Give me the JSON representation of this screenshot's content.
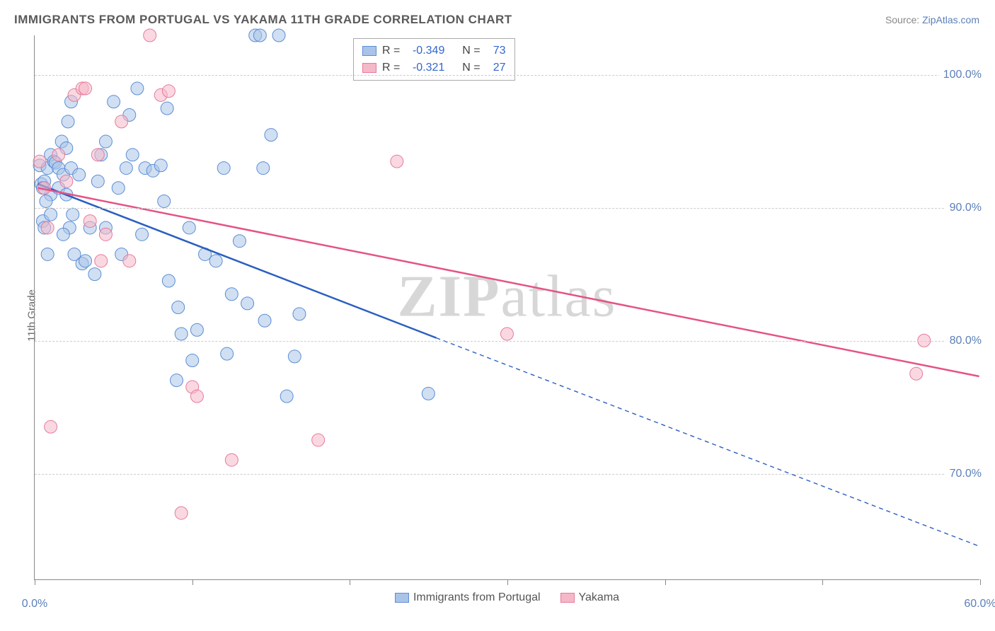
{
  "title": "IMMIGRANTS FROM PORTUGAL VS YAKAMA 11TH GRADE CORRELATION CHART",
  "source_label": "Source:",
  "source_name": "ZipAtlas.com",
  "ylabel": "11th Grade",
  "watermark": {
    "part1": "ZIP",
    "part2": "atlas"
  },
  "chart": {
    "type": "scatter",
    "x_min": 0,
    "x_max": 60,
    "y_min": 62,
    "y_max": 103,
    "y_ticks": [
      70,
      80,
      90,
      100
    ],
    "y_tick_labels": [
      "70.0%",
      "80.0%",
      "90.0%",
      "100.0%"
    ],
    "x_ticks": [
      0,
      10,
      20,
      30,
      40,
      50,
      60
    ],
    "x_tick_labels": [
      "0.0%",
      null,
      null,
      null,
      null,
      null,
      "60.0%"
    ],
    "grid_color": "#cccccc",
    "marker_radius": 9,
    "marker_opacity": 0.55,
    "series": [
      {
        "name": "Immigrants from Portugal",
        "color_fill": "#a9c4e8",
        "color_stroke": "#5b8dd6",
        "line_color": "#2b5fc1",
        "line_width": 2.5,
        "R": "-0.349",
        "N": "73",
        "trend": {
          "x1": 0.2,
          "y1": 91.8,
          "x2": 25.5,
          "y2": 80.2,
          "extend_x2": 60,
          "extend_y2": 64.5,
          "extend_dash": "6,5"
        },
        "points": [
          [
            0.3,
            93.2
          ],
          [
            0.4,
            91.8
          ],
          [
            0.6,
            92.0
          ],
          [
            0.8,
            93.0
          ],
          [
            0.5,
            89.0
          ],
          [
            0.6,
            88.5
          ],
          [
            0.8,
            86.5
          ],
          [
            1.0,
            94.0
          ],
          [
            1.0,
            91.0
          ],
          [
            1.2,
            93.5
          ],
          [
            1.3,
            93.4
          ],
          [
            1.5,
            93.0
          ],
          [
            1.7,
            95.0
          ],
          [
            1.8,
            92.5
          ],
          [
            2.0,
            94.5
          ],
          [
            2.1,
            96.5
          ],
          [
            2.3,
            98.0
          ],
          [
            2.2,
            88.5
          ],
          [
            2.4,
            89.5
          ],
          [
            5.0,
            98.0
          ],
          [
            4.5,
            95.0
          ],
          [
            5.3,
            91.5
          ],
          [
            5.8,
            93.0
          ],
          [
            6.0,
            97.0
          ],
          [
            6.5,
            99.0
          ],
          [
            6.2,
            94.0
          ],
          [
            7.0,
            93.0
          ],
          [
            7.5,
            92.8
          ],
          [
            8.0,
            93.2
          ],
          [
            8.2,
            90.5
          ],
          [
            8.4,
            97.5
          ],
          [
            9.0,
            77.0
          ],
          [
            9.1,
            82.5
          ],
          [
            9.3,
            80.5
          ],
          [
            9.8,
            88.5
          ],
          [
            10.0,
            78.5
          ],
          [
            10.3,
            80.8
          ],
          [
            10.8,
            86.5
          ],
          [
            11.5,
            86.0
          ],
          [
            12.0,
            93.0
          ],
          [
            12.2,
            79.0
          ],
          [
            12.5,
            83.5
          ],
          [
            13.0,
            87.5
          ],
          [
            13.5,
            82.8
          ],
          [
            14.0,
            103.0
          ],
          [
            14.3,
            103.0
          ],
          [
            14.5,
            93.0
          ],
          [
            14.6,
            81.5
          ],
          [
            15.0,
            95.5
          ],
          [
            15.5,
            103.0
          ],
          [
            16.0,
            75.8
          ],
          [
            16.5,
            78.8
          ],
          [
            16.8,
            82.0
          ],
          [
            2.5,
            86.5
          ],
          [
            3.0,
            85.8
          ],
          [
            3.2,
            86.0
          ],
          [
            3.5,
            88.5
          ],
          [
            3.8,
            85.0
          ],
          [
            4.0,
            92.0
          ],
          [
            4.2,
            94.0
          ],
          [
            4.5,
            88.5
          ],
          [
            0.5,
            91.5
          ],
          [
            0.7,
            90.5
          ],
          [
            1.0,
            89.5
          ],
          [
            1.5,
            91.5
          ],
          [
            1.8,
            88.0
          ],
          [
            2.0,
            91.0
          ],
          [
            2.3,
            93.0
          ],
          [
            2.8,
            92.5
          ],
          [
            5.5,
            86.5
          ],
          [
            6.8,
            88.0
          ],
          [
            8.5,
            84.5
          ],
          [
            25.0,
            76.0
          ]
        ]
      },
      {
        "name": "Yakama",
        "color_fill": "#f5b8c9",
        "color_stroke": "#e67a9c",
        "line_color": "#e65285",
        "line_width": 2.5,
        "R": "-0.321",
        "N": "27",
        "trend": {
          "x1": 0.2,
          "y1": 91.5,
          "x2": 60,
          "y2": 77.3
        },
        "points": [
          [
            0.3,
            93.5
          ],
          [
            0.6,
            91.5
          ],
          [
            0.8,
            88.5
          ],
          [
            1.0,
            73.5
          ],
          [
            1.5,
            94.0
          ],
          [
            2.0,
            92.0
          ],
          [
            2.5,
            98.5
          ],
          [
            3.0,
            99.0
          ],
          [
            3.2,
            99.0
          ],
          [
            3.5,
            89.0
          ],
          [
            4.0,
            94.0
          ],
          [
            4.2,
            86.0
          ],
          [
            5.5,
            96.5
          ],
          [
            7.3,
            103.0
          ],
          [
            8.0,
            98.5
          ],
          [
            8.5,
            98.8
          ],
          [
            9.3,
            67.0
          ],
          [
            10.0,
            76.5
          ],
          [
            10.3,
            75.8
          ],
          [
            12.5,
            71.0
          ],
          [
            18.0,
            72.5
          ],
          [
            23.0,
            93.5
          ],
          [
            30.0,
            80.5
          ],
          [
            56.5,
            80.0
          ],
          [
            56.0,
            77.5
          ],
          [
            6.0,
            86.0
          ],
          [
            4.5,
            88.0
          ]
        ]
      }
    ]
  },
  "bottom_legend": [
    {
      "label": "Immigrants from Portugal",
      "fill": "#a9c4e8",
      "stroke": "#5b8dd6"
    },
    {
      "label": "Yakama",
      "fill": "#f5b8c9",
      "stroke": "#e67a9c"
    }
  ]
}
